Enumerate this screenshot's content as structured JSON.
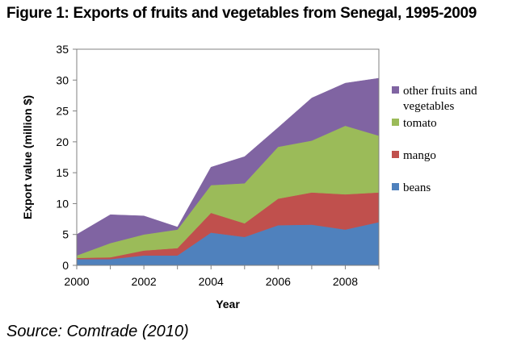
{
  "figure_title": "Figure 1: Exports of fruits and vegetables from Senegal, 1995-2009",
  "source": "Source: Comtrade (2010)",
  "chart_data": {
    "type": "area",
    "stacked": true,
    "x": [
      2000,
      2001,
      2002,
      2003,
      2004,
      2005,
      2006,
      2007,
      2008,
      2009
    ],
    "xlabel": "Year",
    "ylabel": "Export value (million $)",
    "ylim": [
      0,
      35
    ],
    "xlim": [
      2000,
      2009
    ],
    "yticks": [
      0,
      5,
      10,
      15,
      20,
      25,
      30,
      35
    ],
    "xticks": [
      2000,
      2002,
      2004,
      2006,
      2008
    ],
    "grid": false,
    "legend_position": "right",
    "series": [
      {
        "name": "beans",
        "color": "#4f81bd",
        "values": [
          1.0,
          1.0,
          1.6,
          1.6,
          5.3,
          4.6,
          6.5,
          6.6,
          5.8,
          7.0
        ]
      },
      {
        "name": "mango",
        "color": "#c0504d",
        "values": [
          0.2,
          0.3,
          0.8,
          1.2,
          3.2,
          2.2,
          4.3,
          5.2,
          5.7,
          4.8
        ]
      },
      {
        "name": "tomato",
        "color": "#9bbb59",
        "values": [
          0.4,
          2.3,
          2.6,
          3.0,
          4.5,
          6.5,
          8.4,
          8.4,
          11.1,
          9.2
        ]
      },
      {
        "name": "other fruits and vegetables",
        "color": "#8064a2",
        "values": [
          3.4,
          4.6,
          3.0,
          0.4,
          2.9,
          4.3,
          3.1,
          6.9,
          6.9,
          9.3
        ]
      }
    ]
  }
}
